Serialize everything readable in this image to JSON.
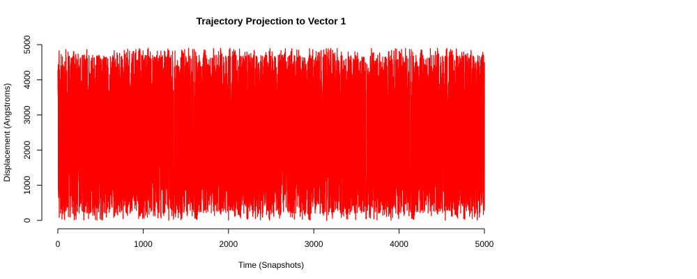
{
  "chart_data": {
    "type": "line",
    "title": "Trajectory Projection to Vector 1",
    "xlabel": "Time (Snapshots)",
    "ylabel": "Displacement (Angstroms)",
    "xlim": [
      0,
      5000
    ],
    "ylim": [
      0,
      5000
    ],
    "x_ticks": [
      0,
      1000,
      2000,
      3000,
      4000,
      5000
    ],
    "y_ticks": [
      0,
      1000,
      2000,
      3000,
      4000,
      5000
    ],
    "grid": false,
    "legend": "none",
    "series": [
      {
        "color": "#ff0000",
        "n_points": 5000,
        "x_range": [
          1,
          5000
        ],
        "y_min": 0,
        "y_max": 4900,
        "y_center": 2500,
        "note_values": "dense oscillating signal spanning roughly 0 to 4900 at every snapshot"
      }
    ]
  },
  "colors": {
    "series": "#ff0000",
    "axis": "#000000",
    "background": "#ffffff"
  }
}
